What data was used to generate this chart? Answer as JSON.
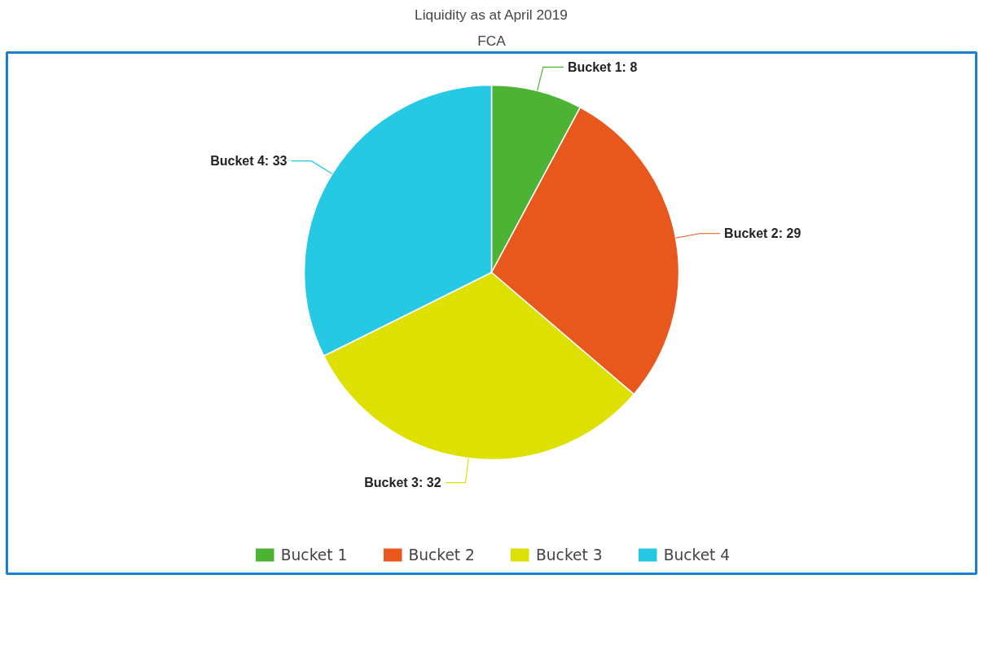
{
  "chart_data": {
    "type": "pie",
    "title": "Liquidity as at April 2019",
    "subtitle": "FCA",
    "categories": [
      "Bucket 1",
      "Bucket 2",
      "Bucket 3",
      "Bucket 4"
    ],
    "values": [
      8,
      29,
      32,
      33
    ],
    "colors": [
      "#4db334",
      "#e8571c",
      "#dde000",
      "#26c9e4"
    ],
    "value_labels": [
      "Bucket 1: 8",
      "Bucket 2: 29",
      "Bucket 3: 32",
      "Bucket 4: 33"
    ],
    "data_labels": true,
    "legend": "bottom"
  }
}
